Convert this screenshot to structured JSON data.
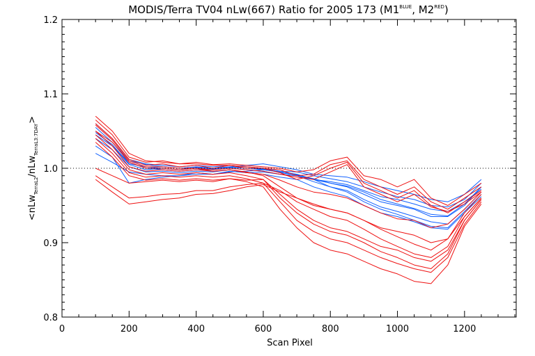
{
  "chart_data": {
    "type": "line",
    "title": {
      "main": "MODIS/Terra TV04 nLw(667) Ratio for 2005 173 (M1",
      "sup1": "BLUE",
      "mid": ", M2",
      "sup2": "RED",
      "end": ")"
    },
    "xlabel": "Scan Pixel",
    "ylabel": {
      "open": "<nLw",
      "sub1": "TerraL2",
      "mid": "/nLw",
      "sub2": "TerraL3:7DAY",
      "close": ">"
    },
    "xlim": [
      0,
      1354
    ],
    "ylim": [
      0.8,
      1.2
    ],
    "x_ticks": [
      0,
      200,
      400,
      600,
      800,
      1000,
      1200
    ],
    "x_tick_labels": [
      "0",
      "200",
      "400",
      "600",
      "800",
      "1000",
      "1200"
    ],
    "y_ticks": [
      0.8,
      0.9,
      1.0,
      1.1,
      1.2
    ],
    "y_tick_labels": [
      "0.8",
      "0.9",
      "1.0",
      "1.1",
      "1.2"
    ],
    "reference_line": 1.0,
    "x": [
      100,
      150,
      200,
      250,
      300,
      350,
      400,
      450,
      500,
      550,
      600,
      650,
      700,
      750,
      800,
      850,
      900,
      950,
      1000,
      1050,
      1100,
      1150,
      1200,
      1250
    ],
    "series": [
      {
        "group": "M1",
        "color": "#1060ff",
        "values": [
          1.055,
          1.035,
          1.01,
          1.005,
          1.002,
          1.0,
          1.002,
          1.0,
          1.002,
          1.0,
          0.998,
          0.995,
          0.992,
          0.985,
          0.98,
          0.975,
          0.965,
          0.955,
          0.95,
          0.945,
          0.935,
          0.935,
          0.95,
          0.975
        ]
      },
      {
        "group": "M1",
        "color": "#1060ff",
        "values": [
          1.045,
          1.03,
          1.008,
          1.0,
          0.998,
          0.996,
          0.998,
          0.998,
          1.0,
          0.998,
          0.996,
          0.992,
          0.99,
          0.982,
          0.975,
          0.97,
          0.958,
          0.948,
          0.942,
          0.935,
          0.928,
          0.925,
          0.945,
          0.968
        ]
      },
      {
        "group": "M1",
        "color": "#1060ff",
        "values": [
          1.04,
          1.025,
          1.002,
          0.995,
          0.996,
          0.994,
          0.996,
          0.995,
          0.998,
          0.994,
          0.992,
          0.988,
          0.985,
          0.975,
          0.968,
          0.962,
          0.95,
          0.94,
          0.935,
          0.928,
          0.92,
          0.918,
          0.94,
          0.962
        ]
      },
      {
        "group": "M1",
        "color": "#1060ff",
        "values": [
          1.06,
          1.04,
          1.012,
          1.006,
          1.004,
          1.002,
          1.004,
          1.002,
          1.004,
          1.002,
          1.0,
          0.996,
          0.995,
          0.99,
          0.986,
          0.982,
          0.975,
          0.968,
          0.962,
          0.958,
          0.95,
          0.948,
          0.958,
          0.98
        ]
      },
      {
        "group": "M1",
        "color": "#1060ff",
        "values": [
          1.02,
          1.008,
          0.995,
          0.992,
          0.99,
          0.99,
          0.994,
          0.992,
          0.996,
          0.994,
          0.995,
          0.992,
          0.99,
          0.985,
          0.982,
          0.978,
          0.97,
          0.962,
          0.958,
          0.952,
          0.945,
          0.942,
          0.955,
          0.972
        ]
      },
      {
        "group": "M1",
        "color": "#1060ff",
        "values": [
          1.05,
          1.03,
          1.005,
          0.998,
          1.0,
          0.998,
          1.0,
          1.0,
          1.002,
          1.004,
          1.006,
          1.002,
          0.998,
          0.992,
          0.99,
          0.988,
          0.982,
          0.975,
          0.97,
          0.965,
          0.958,
          0.955,
          0.965,
          0.985
        ]
      },
      {
        "group": "M1",
        "color": "#1060ff",
        "values": [
          1.03,
          1.015,
          0.98,
          0.985,
          0.988,
          0.99,
          0.992,
          0.992,
          0.995,
          0.996,
          0.998,
          0.995,
          0.992,
          0.985,
          0.975,
          0.968,
          0.955,
          0.945,
          0.938,
          0.93,
          0.922,
          0.92,
          0.942,
          0.965
        ]
      },
      {
        "group": "M1",
        "color": "#1060ff",
        "values": [
          1.048,
          1.032,
          1.006,
          1.002,
          1.0,
          0.998,
          1.001,
          0.999,
          1.001,
          1.0,
          0.999,
          0.994,
          0.991,
          0.986,
          0.98,
          0.976,
          0.968,
          0.958,
          0.952,
          0.946,
          0.938,
          0.936,
          0.952,
          0.975
        ]
      },
      {
        "group": "M2",
        "color": "#ee1010",
        "values": [
          1.07,
          1.05,
          1.02,
          1.01,
          1.008,
          1.006,
          1.008,
          1.005,
          1.006,
          1.004,
          1.002,
          1.0,
          0.995,
          0.998,
          1.01,
          1.015,
          0.99,
          0.985,
          0.975,
          0.985,
          0.96,
          0.95,
          0.965,
          0.98
        ]
      },
      {
        "group": "M2",
        "color": "#ee1010",
        "values": [
          1.065,
          1.045,
          1.015,
          1.008,
          1.01,
          1.006,
          1.006,
          1.004,
          1.004,
          1.002,
          1.0,
          0.998,
          0.99,
          0.992,
          1.005,
          1.01,
          0.985,
          0.975,
          0.965,
          0.975,
          0.955,
          0.945,
          0.96,
          0.975
        ]
      },
      {
        "group": "M2",
        "color": "#ee1010",
        "values": [
          1.06,
          1.04,
          1.012,
          1.004,
          1.006,
          1.002,
          1.004,
          1.0,
          1.004,
          1.0,
          1.0,
          0.994,
          0.985,
          0.99,
          1.0,
          1.008,
          0.98,
          0.97,
          0.96,
          0.97,
          0.95,
          0.94,
          0.955,
          0.97
        ]
      },
      {
        "group": "M2",
        "color": "#ee1010",
        "values": [
          1.058,
          1.038,
          1.01,
          1.002,
          1.002,
          1.0,
          1.0,
          0.998,
          1.0,
          0.998,
          0.996,
          0.992,
          0.988,
          0.985,
          0.995,
          1.005,
          0.975,
          0.965,
          0.955,
          0.965,
          0.948,
          0.942,
          0.952,
          0.968
        ]
      },
      {
        "group": "M2",
        "color": "#ee1010",
        "values": [
          1.05,
          1.03,
          1.002,
          0.996,
          0.998,
          0.996,
          0.998,
          0.996,
          0.998,
          0.995,
          0.99,
          0.975,
          0.96,
          0.95,
          0.945,
          0.94,
          0.93,
          0.92,
          0.915,
          0.91,
          0.9,
          0.905,
          0.935,
          0.96
        ]
      },
      {
        "group": "M2",
        "color": "#ee1010",
        "values": [
          1.045,
          1.025,
          0.998,
          0.992,
          0.994,
          0.992,
          0.994,
          0.992,
          0.994,
          0.99,
          0.985,
          0.965,
          0.945,
          0.93,
          0.92,
          0.915,
          0.905,
          0.895,
          0.89,
          0.88,
          0.875,
          0.89,
          0.93,
          0.958
        ]
      },
      {
        "group": "M2",
        "color": "#ee1010",
        "values": [
          1.04,
          1.02,
          0.994,
          0.988,
          0.99,
          0.988,
          0.99,
          0.988,
          0.99,
          0.986,
          0.98,
          0.955,
          0.93,
          0.915,
          0.905,
          0.9,
          0.89,
          0.88,
          0.872,
          0.865,
          0.86,
          0.88,
          0.925,
          0.955
        ]
      },
      {
        "group": "M2",
        "color": "#ee1010",
        "values": [
          1.035,
          1.015,
          0.99,
          0.984,
          0.986,
          0.984,
          0.986,
          0.984,
          0.986,
          0.982,
          0.975,
          0.945,
          0.92,
          0.9,
          0.89,
          0.885,
          0.875,
          0.865,
          0.858,
          0.848,
          0.845,
          0.87,
          0.922,
          0.952
        ]
      },
      {
        "group": "M2",
        "color": "#ee1010",
        "values": [
          1.0,
          0.99,
          0.98,
          0.982,
          0.984,
          0.982,
          0.984,
          0.982,
          0.986,
          0.984,
          0.985,
          0.96,
          0.94,
          0.925,
          0.915,
          0.91,
          0.9,
          0.888,
          0.88,
          0.87,
          0.865,
          0.885,
          0.93,
          0.958
        ]
      },
      {
        "group": "M2",
        "color": "#ee1010",
        "values": [
          0.99,
          0.975,
          0.96,
          0.962,
          0.965,
          0.966,
          0.97,
          0.97,
          0.975,
          0.978,
          0.98,
          0.97,
          0.955,
          0.945,
          0.935,
          0.93,
          0.918,
          0.905,
          0.895,
          0.885,
          0.88,
          0.895,
          0.935,
          0.96
        ]
      },
      {
        "group": "M2",
        "color": "#ee1010",
        "values": [
          0.985,
          0.968,
          0.952,
          0.955,
          0.958,
          0.96,
          0.965,
          0.966,
          0.97,
          0.975,
          0.978,
          0.968,
          0.96,
          0.952,
          0.945,
          0.94,
          0.93,
          0.918,
          0.908,
          0.898,
          0.89,
          0.905,
          0.94,
          0.965
        ]
      },
      {
        "group": "M2",
        "color": "#ee1010",
        "values": [
          1.05,
          1.035,
          1.008,
          1.0,
          1.0,
          0.998,
          1.0,
          0.996,
          0.998,
          0.994,
          0.992,
          0.984,
          0.975,
          0.968,
          0.965,
          0.96,
          0.95,
          0.94,
          0.932,
          0.93,
          0.92,
          0.925,
          0.945,
          0.968
        ]
      }
    ]
  }
}
